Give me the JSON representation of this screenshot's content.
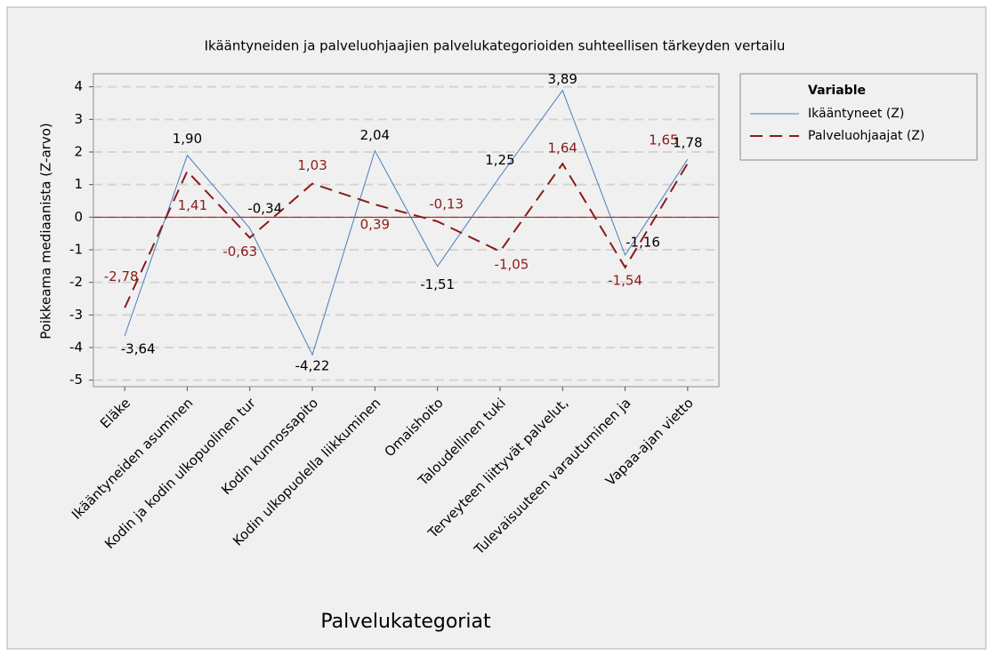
{
  "chart_data": {
    "type": "line",
    "title": "Ikääntyneiden ja palveluohjaajien palvelukategorioiden suhteellisen tärkeyden vertailu",
    "x_label": "Palvelukategoriat",
    "y_label": "Poikkeama mediaanista (Z-arvo)",
    "legend_title": "Variable",
    "categories": [
      "Eläke",
      "Ikääntyneiden asuminen",
      "Kodin ja kodin ulkopuolinen tur",
      "Kodin kunnossapito",
      "Kodin ulkopuolella liikkuminen",
      "Omaishoito",
      "Taloudellinen tuki",
      "Terveyteen liittyvät palvelut,",
      "Tulevaisuuteen varautuminen ja",
      "Vapaa-ajan vietto"
    ],
    "series": [
      {
        "name": "Ikääntyneet (Z)",
        "color": "#4a7ebb",
        "dash": "solid",
        "values": [
          -3.64,
          1.9,
          -0.34,
          -4.22,
          2.04,
          -1.51,
          1.25,
          3.89,
          -1.16,
          1.78
        ],
        "value_labels": [
          "-3,64",
          "1,90",
          "-0,34",
          "-4,22",
          "2,04",
          "-1,51",
          "1,25",
          "3,89",
          "-1,16",
          "1,78"
        ]
      },
      {
        "name": "Palveluohjaajat (Z)",
        "color": "#8b1a1a",
        "dash": "dashed",
        "values": [
          -2.78,
          1.41,
          -0.63,
          1.03,
          0.39,
          -0.13,
          -1.05,
          1.64,
          -1.54,
          1.65
        ],
        "value_labels": [
          "-2,78",
          "1,41",
          "-0,63",
          "1,03",
          "0,39",
          "-0,13",
          "-1,05",
          "1,64",
          "-1,54",
          "1,65"
        ]
      }
    ],
    "reference_line": {
      "value": 0,
      "color": "#cc0000"
    },
    "ylim": [
      -5.2,
      4.4
    ],
    "yticks": [
      -5,
      -4,
      -3,
      -2,
      -1,
      0,
      1,
      2,
      3,
      4
    ],
    "grid": true
  }
}
